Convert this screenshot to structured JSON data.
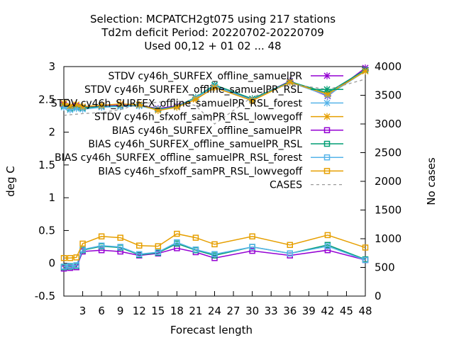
{
  "chart_data": {
    "type": "line",
    "title_lines": [
      "Selection: MCPATCH2gt075 using   217 stations",
      "Td2m deficit   Period: 20220702-20220709",
      "Used  00,12  + 01 02 ... 48"
    ],
    "xlabel": "Forecast length",
    "ylabel": "deg C",
    "y2label": "No cases",
    "xlim": [
      0,
      48
    ],
    "ylim": [
      -0.5,
      3
    ],
    "y2lim": [
      0,
      4000
    ],
    "xticks": [
      "3",
      "6",
      "9",
      "12",
      "15",
      "18",
      "21",
      "24",
      "27",
      "30",
      "33",
      "36",
      "39",
      "42",
      "45",
      "48"
    ],
    "yticks": [
      "-0.5",
      "0",
      "0.5",
      "1",
      "1.5",
      "2",
      "2.5",
      "3"
    ],
    "y2ticks": [
      "0",
      "500",
      "1000",
      "1500",
      "2000",
      "2500",
      "3000",
      "3500",
      "4000"
    ],
    "x": [
      0,
      1,
      2,
      3,
      6,
      9,
      12,
      15,
      18,
      21,
      24,
      30,
      36,
      42,
      48
    ],
    "series": [
      {
        "name": "STDV cy46h_SURFEX_offline_samuelPR",
        "color": "#9400d3",
        "marker": "x",
        "values": [
          2.42,
          2.38,
          2.4,
          2.38,
          2.4,
          2.42,
          2.41,
          2.36,
          2.4,
          2.52,
          2.7,
          2.5,
          2.78,
          2.55,
          2.98
        ]
      },
      {
        "name": "STDV cy46h_SURFEX_offline_samuelPR_RSL",
        "color": "#009e73",
        "marker": "x",
        "values": [
          2.4,
          2.36,
          2.38,
          2.37,
          2.39,
          2.4,
          2.41,
          2.35,
          2.39,
          2.53,
          2.72,
          2.51,
          2.77,
          2.6,
          2.95
        ]
      },
      {
        "name": "STDV cy46h_SURFEX_offline_samuelPR_RSL_forest",
        "color": "#56b4e9",
        "marker": "x",
        "values": [
          2.38,
          2.34,
          2.36,
          2.35,
          2.38,
          2.39,
          2.4,
          2.34,
          2.38,
          2.52,
          2.7,
          2.49,
          2.76,
          2.56,
          2.93
        ]
      },
      {
        "name": "STDV cy46h_sfxoff_samPR_RSL_lowvegoff",
        "color": "#e69f00",
        "marker": "x",
        "values": [
          2.44,
          2.4,
          2.42,
          2.39,
          2.41,
          2.43,
          2.42,
          2.33,
          2.38,
          2.5,
          2.68,
          2.48,
          2.76,
          2.58,
          2.93
        ]
      },
      {
        "name": "BIAS cy46h_SURFEX_offline_samuelPR",
        "color": "#9400d3",
        "marker": "square",
        "values": [
          -0.08,
          -0.07,
          -0.06,
          0.18,
          0.2,
          0.18,
          0.12,
          0.15,
          0.23,
          0.17,
          0.08,
          0.19,
          0.12,
          0.2,
          0.05
        ]
      },
      {
        "name": "BIAS cy46h_SURFEX_offline_samuelPR_RSL",
        "color": "#009e73",
        "marker": "square",
        "values": [
          -0.06,
          -0.05,
          -0.04,
          0.2,
          0.26,
          0.24,
          0.13,
          0.16,
          0.3,
          0.2,
          0.12,
          0.25,
          0.15,
          0.28,
          0.06
        ]
      },
      {
        "name": "BIAS cy46h_SURFEX_offline_samuelPR_RSL_forest",
        "color": "#56b4e9",
        "marker": "square",
        "values": [
          -0.05,
          -0.04,
          -0.03,
          0.21,
          0.27,
          0.25,
          0.14,
          0.17,
          0.32,
          0.21,
          0.14,
          0.25,
          0.15,
          0.26,
          0.05
        ]
      },
      {
        "name": "BIAS cy46h_sfxoff_samPR_RSL_lowvegoff",
        "color": "#e69f00",
        "marker": "square",
        "values": [
          0.08,
          0.08,
          0.09,
          0.3,
          0.41,
          0.39,
          0.27,
          0.26,
          0.45,
          0.39,
          0.29,
          0.41,
          0.28,
          0.43,
          0.24
        ]
      },
      {
        "name": "CASES",
        "color": "#999999",
        "marker": "none",
        "axis": "y2",
        "dash": true,
        "values": [
          3150,
          3160,
          3170,
          3180,
          3200,
          3250,
          3350,
          3380,
          3400,
          3320,
          3000,
          3470,
          3700,
          3600,
          3780
        ]
      }
    ]
  }
}
